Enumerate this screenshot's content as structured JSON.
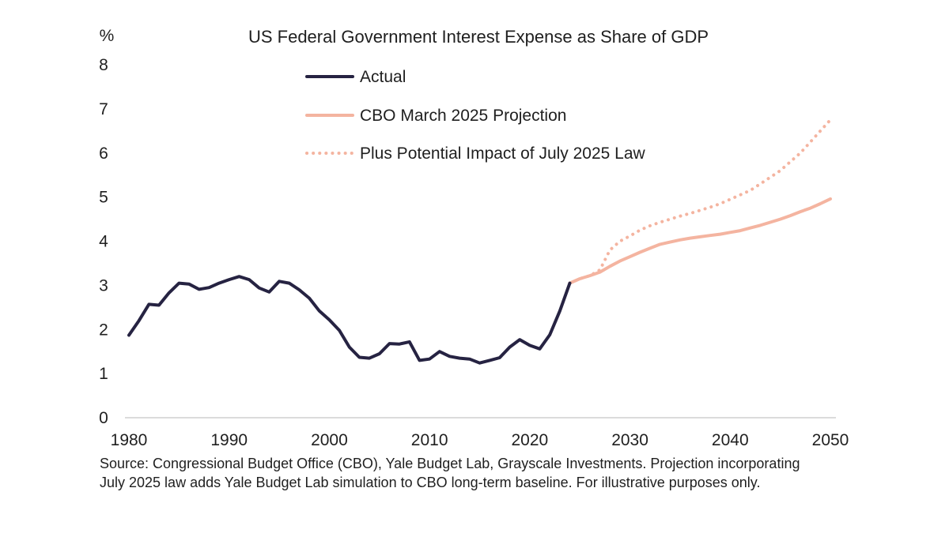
{
  "chart_data": {
    "type": "line",
    "title": "US Federal Government Interest Expense as Share of GDP",
    "ylabel": "%",
    "xlabel": "",
    "xlim": [
      1980,
      2050
    ],
    "ylim": [
      0,
      8
    ],
    "x_ticks": [
      "1980",
      "1990",
      "2000",
      "2010",
      "2020",
      "2030",
      "2040",
      "2050"
    ],
    "y_ticks": [
      "0",
      "1",
      "2",
      "3",
      "4",
      "5",
      "6",
      "7",
      "8"
    ],
    "legend": {
      "placement": "top-center",
      "entries": [
        {
          "label": "Actual",
          "color": "#262342",
          "style": "solid"
        },
        {
          "label": "CBO March 2025 Projection",
          "color": "#f4b4a0",
          "style": "solid"
        },
        {
          "label": "Plus Potential Impact of July 2025 Law",
          "color": "#f4b4a0",
          "style": "dotted"
        }
      ]
    },
    "series": [
      {
        "name": "Actual",
        "color": "#262342",
        "style": "solid",
        "points": [
          [
            1980,
            1.87
          ],
          [
            1981,
            2.2
          ],
          [
            1982,
            2.57
          ],
          [
            1983,
            2.55
          ],
          [
            1984,
            2.83
          ],
          [
            1985,
            3.05
          ],
          [
            1986,
            3.03
          ],
          [
            1987,
            2.91
          ],
          [
            1988,
            2.95
          ],
          [
            1989,
            3.05
          ],
          [
            1990,
            3.13
          ],
          [
            1991,
            3.2
          ],
          [
            1992,
            3.13
          ],
          [
            1993,
            2.94
          ],
          [
            1994,
            2.85
          ],
          [
            1995,
            3.09
          ],
          [
            1996,
            3.05
          ],
          [
            1997,
            2.9
          ],
          [
            1998,
            2.71
          ],
          [
            1999,
            2.42
          ],
          [
            2000,
            2.22
          ],
          [
            2001,
            1.98
          ],
          [
            2002,
            1.6
          ],
          [
            2003,
            1.37
          ],
          [
            2004,
            1.35
          ],
          [
            2005,
            1.45
          ],
          [
            2006,
            1.68
          ],
          [
            2007,
            1.67
          ],
          [
            2008,
            1.72
          ],
          [
            2009,
            1.3
          ],
          [
            2010,
            1.33
          ],
          [
            2011,
            1.5
          ],
          [
            2012,
            1.39
          ],
          [
            2013,
            1.35
          ],
          [
            2014,
            1.33
          ],
          [
            2015,
            1.24
          ],
          [
            2016,
            1.3
          ],
          [
            2017,
            1.36
          ],
          [
            2018,
            1.6
          ],
          [
            2019,
            1.77
          ],
          [
            2020,
            1.64
          ],
          [
            2021,
            1.56
          ],
          [
            2022,
            1.88
          ],
          [
            2023,
            2.42
          ],
          [
            2024,
            3.05
          ]
        ]
      },
      {
        "name": "CBO March 2025 Projection",
        "color": "#f4b4a0",
        "style": "solid",
        "points": [
          [
            2024,
            3.05
          ],
          [
            2025,
            3.15
          ],
          [
            2026,
            3.22
          ],
          [
            2027,
            3.3
          ],
          [
            2028,
            3.43
          ],
          [
            2029,
            3.55
          ],
          [
            2030,
            3.65
          ],
          [
            2031,
            3.75
          ],
          [
            2032,
            3.84
          ],
          [
            2033,
            3.93
          ],
          [
            2034,
            3.98
          ],
          [
            2035,
            4.03
          ],
          [
            2036,
            4.07
          ],
          [
            2037,
            4.1
          ],
          [
            2038,
            4.13
          ],
          [
            2039,
            4.16
          ],
          [
            2040,
            4.2
          ],
          [
            2041,
            4.24
          ],
          [
            2042,
            4.3
          ],
          [
            2043,
            4.36
          ],
          [
            2044,
            4.43
          ],
          [
            2045,
            4.5
          ],
          [
            2046,
            4.58
          ],
          [
            2047,
            4.67
          ],
          [
            2048,
            4.75
          ],
          [
            2049,
            4.85
          ],
          [
            2050,
            4.96
          ]
        ]
      },
      {
        "name": "Plus Potential Impact of July 2025 Law",
        "color": "#f4b4a0",
        "style": "dotted",
        "points": [
          [
            2024,
            3.05
          ],
          [
            2025,
            3.15
          ],
          [
            2026,
            3.22
          ],
          [
            2027,
            3.35
          ],
          [
            2028,
            3.8
          ],
          [
            2029,
            4.0
          ],
          [
            2030,
            4.12
          ],
          [
            2031,
            4.25
          ],
          [
            2032,
            4.35
          ],
          [
            2033,
            4.43
          ],
          [
            2034,
            4.5
          ],
          [
            2035,
            4.57
          ],
          [
            2036,
            4.63
          ],
          [
            2037,
            4.7
          ],
          [
            2038,
            4.77
          ],
          [
            2039,
            4.85
          ],
          [
            2040,
            4.95
          ],
          [
            2041,
            5.05
          ],
          [
            2042,
            5.15
          ],
          [
            2043,
            5.3
          ],
          [
            2044,
            5.45
          ],
          [
            2045,
            5.6
          ],
          [
            2046,
            5.8
          ],
          [
            2047,
            6.0
          ],
          [
            2048,
            6.25
          ],
          [
            2049,
            6.5
          ],
          [
            2050,
            6.75
          ]
        ]
      }
    ]
  },
  "source_note": "Source: Congressional Budget Office (CBO), Yale Budget Lab, Grayscale Investments. Projection incorporating July 2025 law adds Yale Budget Lab simulation to CBO long-term baseline. For illustrative purposes only."
}
